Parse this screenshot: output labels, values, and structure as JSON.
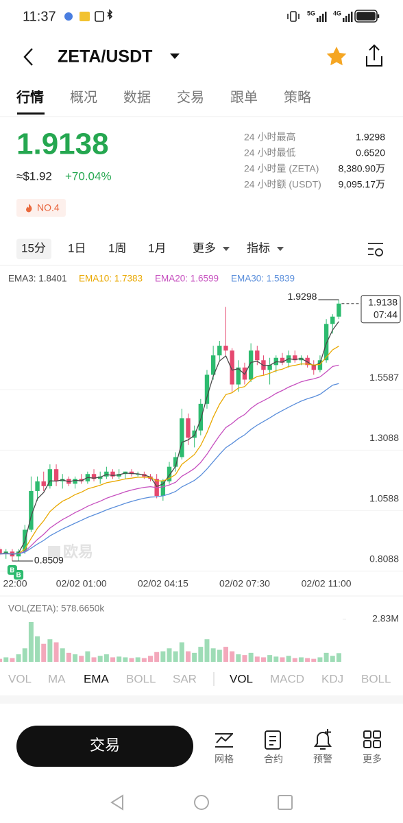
{
  "status_bar": {
    "time": "11:37",
    "net1": "5G",
    "net2": "4G"
  },
  "header": {
    "symbol": "ZETA/USDT"
  },
  "tabs": [
    "行情",
    "概况",
    "数据",
    "交易",
    "跟单",
    "策略"
  ],
  "ticker": {
    "price": 1.9138,
    "usd": "≈$1.92",
    "change": "+70.04%",
    "rank": "NO.4"
  },
  "stats": [
    {
      "label": "24 小时最高",
      "value": 1.9298
    },
    {
      "label": "24 小时最低",
      "value": "0.6520"
    },
    {
      "label": "24 小时量 (ZETA)",
      "value": "8,380.90万"
    },
    {
      "label": "24 小时额 (USDT)",
      "value": "9,095.17万"
    }
  ],
  "timeframes": [
    "15分",
    "1日",
    "1周",
    "1月",
    "更多",
    "指标"
  ],
  "chart_data": [
    {
      "type": "candlestick",
      "categories": [
        null,
        "22:00",
        null,
        null,
        null,
        null,
        null,
        null,
        null,
        null,
        null,
        null,
        null,
        "02/02 01:00",
        null,
        null,
        null,
        null,
        null,
        null,
        null,
        null,
        null,
        null,
        null,
        null,
        "02/02 04:15",
        null,
        null,
        null,
        null,
        null,
        null,
        null,
        null,
        null,
        null,
        null,
        null,
        "02/02 07:30",
        null,
        null,
        null,
        null,
        null,
        null,
        null,
        null,
        null,
        null,
        null,
        null,
        "02/02 11:00",
        null,
        null
      ],
      "open": [
        0.9,
        0.88,
        0.89,
        0.87,
        0.89,
        0.98,
        1.14,
        1.18,
        1.16,
        1.23,
        1.18,
        1.19,
        1.17,
        1.19,
        1.18,
        1.21,
        1.19,
        1.2,
        1.22,
        1.2,
        1.21,
        1.22,
        1.21,
        1.21,
        1.2,
        1.19,
        1.12,
        1.18,
        1.24,
        1.28,
        1.44,
        1.36,
        1.39,
        1.5,
        1.62,
        1.7,
        1.74,
        1.72,
        1.58,
        1.65,
        1.6,
        1.72,
        1.68,
        1.64,
        1.66,
        1.69,
        1.67,
        1.7,
        1.68,
        1.69,
        1.66,
        1.64,
        1.68,
        1.83,
        1.86
      ],
      "high": [
        0.91,
        0.9,
        0.9,
        0.9,
        1.0,
        1.2,
        1.2,
        1.22,
        1.25,
        1.25,
        1.21,
        1.2,
        1.2,
        1.21,
        1.22,
        1.23,
        1.22,
        1.24,
        1.23,
        1.23,
        1.22,
        1.23,
        1.22,
        1.22,
        1.21,
        1.21,
        1.19,
        1.26,
        1.3,
        1.48,
        1.46,
        1.41,
        1.52,
        1.64,
        1.74,
        1.76,
        1.9,
        1.73,
        1.68,
        1.67,
        1.75,
        1.74,
        1.7,
        1.69,
        1.7,
        1.71,
        1.72,
        1.72,
        1.7,
        1.7,
        1.68,
        1.7,
        1.85,
        1.87,
        1.9298
      ],
      "low": [
        0.87,
        0.86,
        0.85,
        0.8509,
        0.88,
        0.97,
        1.1,
        1.14,
        1.15,
        1.16,
        1.15,
        1.16,
        1.15,
        1.17,
        1.17,
        1.18,
        1.17,
        1.19,
        1.19,
        1.19,
        1.19,
        1.2,
        1.2,
        1.19,
        1.18,
        1.11,
        1.1,
        1.17,
        1.22,
        1.27,
        1.33,
        1.32,
        1.37,
        1.48,
        1.6,
        1.68,
        1.7,
        1.55,
        1.55,
        1.58,
        1.59,
        1.66,
        1.62,
        1.58,
        1.63,
        1.66,
        1.65,
        1.67,
        1.66,
        1.65,
        1.62,
        1.63,
        1.67,
        1.79,
        1.85
      ],
      "close": [
        0.88,
        0.89,
        0.87,
        0.89,
        0.98,
        1.14,
        1.18,
        1.16,
        1.23,
        1.18,
        1.19,
        1.17,
        1.19,
        1.18,
        1.21,
        1.19,
        1.2,
        1.22,
        1.2,
        1.21,
        1.22,
        1.21,
        1.21,
        1.2,
        1.19,
        1.12,
        1.18,
        1.24,
        1.28,
        1.44,
        1.36,
        1.39,
        1.5,
        1.62,
        1.7,
        1.74,
        1.72,
        1.58,
        1.65,
        1.6,
        1.72,
        1.68,
        1.64,
        1.66,
        1.69,
        1.67,
        1.7,
        1.68,
        1.69,
        1.66,
        1.64,
        1.68,
        1.83,
        1.86,
        1.9138
      ],
      "up_color": "#2dbb6f",
      "down_color": "#e5486f",
      "series": [
        {
          "name": "EMA3: 1.8401",
          "color": "#4a4a4a",
          "values": [
            0.88,
            0.885,
            0.878,
            0.884,
            0.932,
            1.036,
            1.108,
            1.134,
            1.182,
            1.181,
            1.186,
            1.178,
            1.184,
            1.182,
            1.196,
            1.193,
            1.197,
            1.208,
            1.204,
            1.207,
            1.214,
            1.212,
            1.211,
            1.206,
            1.198,
            1.159,
            1.169,
            1.205,
            1.242,
            1.341,
            1.351,
            1.37,
            1.435,
            1.528,
            1.614,
            1.677,
            1.698,
            1.639,
            1.645,
            1.622,
            1.671,
            1.676,
            1.658,
            1.659,
            1.674,
            1.672,
            1.686,
            1.683,
            1.687,
            1.673,
            1.657,
            1.668,
            1.749,
            1.805,
            1.8401
          ]
        },
        {
          "name": "EMA10: 1.7383",
          "color": "#e9a800",
          "values": [
            0.88,
            0.882,
            0.88,
            0.882,
            0.9,
            0.944,
            0.986,
            1.017,
            1.055,
            1.078,
            1.098,
            1.11,
            1.125,
            1.135,
            1.149,
            1.156,
            1.164,
            1.174,
            1.179,
            1.184,
            1.19,
            1.193,
            1.197,
            1.197,
            1.196,
            1.182,
            1.182,
            1.192,
            1.208,
            1.25,
            1.27,
            1.291,
            1.328,
            1.381,
            1.445,
            1.498,
            1.538,
            1.546,
            1.565,
            1.571,
            1.598,
            1.613,
            1.618,
            1.626,
            1.637,
            1.643,
            1.654,
            1.659,
            1.665,
            1.664,
            1.66,
            1.663,
            1.693,
            1.723,
            1.7383
          ]
        },
        {
          "name": "EMA20: 1.6599",
          "color": "#c64fbf",
          "values": [
            0.88,
            0.881,
            0.88,
            0.881,
            0.89,
            0.914,
            0.94,
            0.961,
            0.987,
            1.005,
            1.022,
            1.036,
            1.051,
            1.063,
            1.077,
            1.088,
            1.098,
            1.11,
            1.119,
            1.128,
            1.137,
            1.144,
            1.15,
            1.155,
            1.158,
            1.154,
            1.157,
            1.165,
            1.176,
            1.201,
            1.216,
            1.233,
            1.258,
            1.292,
            1.331,
            1.369,
            1.402,
            1.419,
            1.441,
            1.456,
            1.481,
            1.5,
            1.513,
            1.527,
            1.543,
            1.555,
            1.569,
            1.58,
            1.591,
            1.598,
            1.603,
            1.611,
            1.632,
            1.654,
            1.6599
          ]
        },
        {
          "name": "EMA30: 1.5839",
          "color": "#5a8edb",
          "values": [
            0.88,
            0.881,
            0.88,
            0.881,
            0.887,
            0.904,
            0.921,
            0.936,
            0.955,
            0.969,
            0.983,
            0.995,
            1.007,
            1.019,
            1.031,
            1.041,
            1.051,
            1.062,
            1.071,
            1.08,
            1.089,
            1.097,
            1.104,
            1.11,
            1.115,
            1.116,
            1.12,
            1.128,
            1.138,
            1.157,
            1.17,
            1.184,
            1.204,
            1.231,
            1.261,
            1.291,
            1.319,
            1.336,
            1.356,
            1.372,
            1.394,
            1.412,
            1.427,
            1.442,
            1.458,
            1.472,
            1.486,
            1.499,
            1.511,
            1.521,
            1.529,
            1.539,
            1.558,
            1.577,
            1.5839
          ]
        }
      ],
      "ylim": [
        0.8028,
        2.0574
      ],
      "yticks": [
        1.5587,
        1.3088,
        1.0588,
        0.8088
      ],
      "grid": true,
      "max_label": 1.9298,
      "min_label": 0.8509,
      "last_price": 1.9138,
      "countdown": "07:44",
      "watermark": "欧易",
      "markers": [
        "B",
        "B"
      ]
    },
    {
      "type": "bar",
      "title": "VOL(ZETA): 578.6650k",
      "values": [
        200000,
        300000,
        250000,
        500000,
        900000,
        2650000,
        1700000,
        1200000,
        1500000,
        1300000,
        900000,
        600000,
        500000,
        400000,
        700000,
        300000,
        400000,
        500000,
        300000,
        350000,
        300000,
        250000,
        300000,
        250000,
        400000,
        650000,
        700000,
        900000,
        700000,
        1300000,
        700000,
        600000,
        1000000,
        1500000,
        900000,
        800000,
        1000000,
        700000,
        500000,
        450000,
        600000,
        350000,
        300000,
        450000,
        350000,
        300000,
        400000,
        250000,
        300000,
        250000,
        200000,
        300000,
        600000,
        400000,
        578665
      ],
      "up_color": "#9edcb6",
      "down_color": "#f3a8bb",
      "ylim": [
        0,
        2830000
      ],
      "yticks": [
        {
          "value": 2830000,
          "label": "2.83M"
        }
      ]
    }
  ],
  "indicator_tabs": [
    "VOL",
    "MA",
    "EMA",
    "BOLL",
    "SAR",
    "VOL",
    "MACD",
    "KDJ",
    "BOLL"
  ],
  "bottom_bar": {
    "trade": "交易",
    "actions": [
      "网格",
      "合约",
      "预警",
      "更多"
    ]
  }
}
